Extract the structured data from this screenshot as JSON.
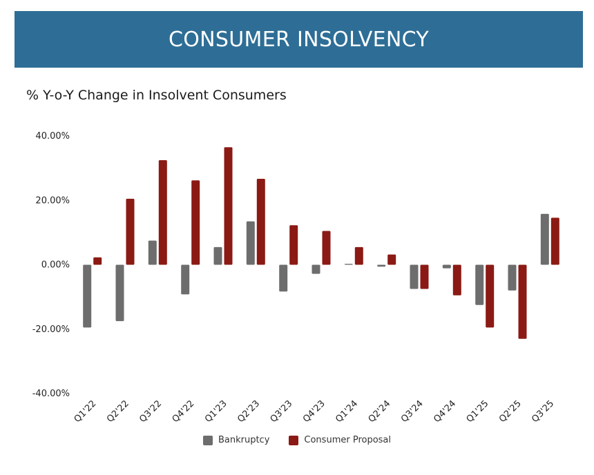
{
  "header": {
    "title": "CONSUMER INSOLVENCY"
  },
  "colors": {
    "banner": "#2e6e96",
    "bankruptcy": "#6d6d6d",
    "proposal": "#8b1a14"
  },
  "chart_data": {
    "type": "bar",
    "title": "% Y-o-Y Change in Insolvent Consumers",
    "xlabel": "",
    "ylabel": "",
    "ylim": [
      -40,
      40
    ],
    "yticks": [
      "40.00%",
      "20.00%",
      "0.00%",
      "-20.00%",
      "-40.00%"
    ],
    "ytick_values": [
      40,
      20,
      0,
      -20,
      -40
    ],
    "categories": [
      "Q1'22",
      "Q2'22",
      "Q3'22",
      "Q4'22",
      "Q1'23",
      "Q2'23",
      "Q3'23",
      "Q4'23",
      "Q1'24",
      "Q2'24",
      "Q3'24",
      "Q4'24",
      "Q1'25",
      "Q2'25",
      "Q3'25"
    ],
    "series": [
      {
        "name": "Bankruptcy",
        "color": "#6d6d6d",
        "values": [
          -19.5,
          -17.5,
          7.5,
          -9.2,
          5.5,
          13.5,
          -8.3,
          -2.8,
          0.3,
          -0.6,
          -7.5,
          -1.1,
          -12.5,
          -8.0,
          15.8
        ]
      },
      {
        "name": "Consumer Proposal",
        "color": "#8b1a14",
        "values": [
          2.3,
          20.5,
          32.5,
          26.2,
          36.5,
          26.7,
          12.3,
          10.5,
          5.5,
          3.2,
          -7.5,
          -9.5,
          -19.5,
          -23.0,
          14.6
        ]
      }
    ],
    "legend_position": "bottom-center",
    "grid": false
  }
}
